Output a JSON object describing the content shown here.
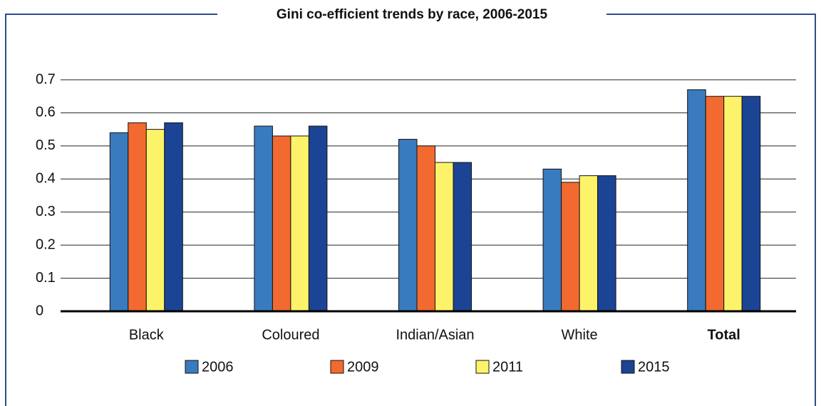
{
  "chart_data": {
    "type": "bar",
    "title": "Gini co-efficient trends by race, 2006-2015",
    "categories": [
      "Black",
      "Coloured",
      "Indian/Asian",
      "White",
      "Total"
    ],
    "series": [
      {
        "name": "2006",
        "color": "#3a7bbf",
        "values": [
          0.54,
          0.56,
          0.52,
          0.43,
          0.67
        ]
      },
      {
        "name": "2009",
        "color": "#f26a30",
        "values": [
          0.57,
          0.53,
          0.5,
          0.39,
          0.65
        ]
      },
      {
        "name": "2011",
        "color": "#fdf36a",
        "values": [
          0.55,
          0.53,
          0.45,
          0.41,
          0.65
        ]
      },
      {
        "name": "2015",
        "color": "#1c4494",
        "values": [
          0.57,
          0.56,
          0.45,
          0.41,
          0.65
        ]
      }
    ],
    "ylim": [
      0,
      0.7
    ],
    "yticks": [
      0,
      0.1,
      0.2,
      0.3,
      0.4,
      0.5,
      0.6,
      0.7
    ],
    "grid": true
  }
}
